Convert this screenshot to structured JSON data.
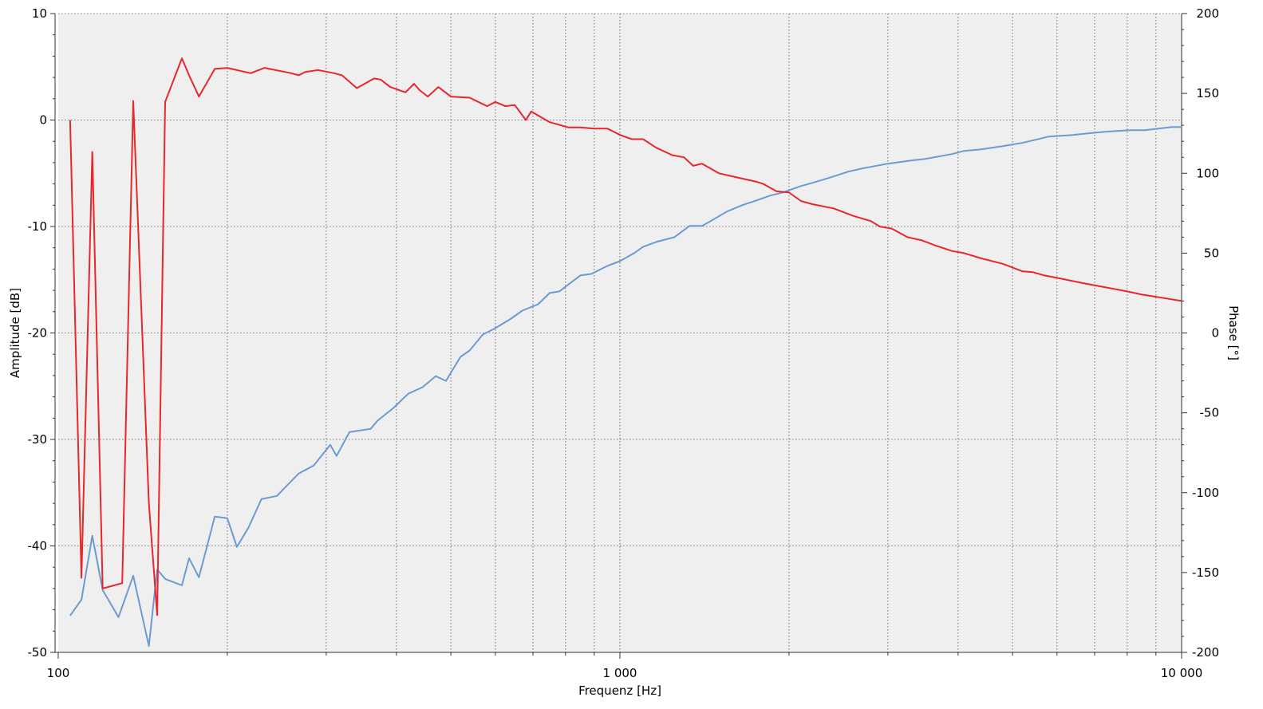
{
  "chart_data": {
    "type": "line",
    "xlabel": "Frequenz [Hz]",
    "ylabel": "Amplitude [dB]",
    "y2label": "Phase [°]",
    "xscale": "log",
    "xlim": [
      100,
      10000
    ],
    "ylim": [
      -50,
      10
    ],
    "y2lim": [
      -200,
      200
    ],
    "grid": true,
    "x_ticks": [
      {
        "value": 100,
        "label": "100"
      },
      {
        "value": 1000,
        "label": "1 000"
      },
      {
        "value": 10000,
        "label": "10 000"
      }
    ],
    "y_ticks": [
      {
        "value": 10,
        "label": "10"
      },
      {
        "value": 0,
        "label": "0"
      },
      {
        "value": -10,
        "label": "-10"
      },
      {
        "value": -20,
        "label": "-20"
      },
      {
        "value": -30,
        "label": "-30"
      },
      {
        "value": -40,
        "label": "-40"
      },
      {
        "value": -50,
        "label": "-50"
      }
    ],
    "y2_ticks": [
      {
        "value": 200,
        "label": "200"
      },
      {
        "value": 150,
        "label": "150"
      },
      {
        "value": 100,
        "label": "100"
      },
      {
        "value": 50,
        "label": "50"
      },
      {
        "value": 0,
        "label": "0"
      },
      {
        "value": -50,
        "label": "-50"
      },
      {
        "value": -100,
        "label": "-100"
      },
      {
        "value": -150,
        "label": "-150"
      },
      {
        "value": -200,
        "label": "-200"
      }
    ],
    "colors": {
      "amplitude": "#e8262b",
      "phase": "#6b9bd2",
      "plot_bg": "#efefef",
      "grid": "#555555"
    },
    "series": [
      {
        "axis": "left",
        "color": "#e8262b",
        "points": [
          [
            105,
            0
          ],
          [
            110,
            -43
          ],
          [
            115,
            -3
          ],
          [
            120,
            -44
          ],
          [
            130,
            -43.5
          ],
          [
            136,
            1.8
          ],
          [
            145,
            -36
          ],
          [
            150,
            -46.5
          ],
          [
            155,
            1.7
          ],
          [
            166,
            5.8
          ],
          [
            171,
            4.2
          ],
          [
            178,
            2.2
          ],
          [
            190,
            4.8
          ],
          [
            200,
            4.9
          ],
          [
            220,
            4.4
          ],
          [
            233,
            4.9
          ],
          [
            260,
            4.4
          ],
          [
            268,
            4.2
          ],
          [
            275,
            4.5
          ],
          [
            290,
            4.7
          ],
          [
            310,
            4.4
          ],
          [
            320,
            4.2
          ],
          [
            340,
            3.0
          ],
          [
            365,
            3.9
          ],
          [
            375,
            3.8
          ],
          [
            390,
            3.1
          ],
          [
            415,
            2.6
          ],
          [
            430,
            3.4
          ],
          [
            440,
            2.8
          ],
          [
            455,
            2.2
          ],
          [
            475,
            3.1
          ],
          [
            500,
            2.2
          ],
          [
            540,
            2.1
          ],
          [
            580,
            1.3
          ],
          [
            600,
            1.7
          ],
          [
            625,
            1.3
          ],
          [
            650,
            1.4
          ],
          [
            680,
            0
          ],
          [
            695,
            0.8
          ],
          [
            750,
            -0.2
          ],
          [
            810,
            -0.7
          ],
          [
            850,
            -0.7
          ],
          [
            900,
            -0.8
          ],
          [
            950,
            -0.8
          ],
          [
            1000,
            -1.4
          ],
          [
            1050,
            -1.8
          ],
          [
            1100,
            -1.8
          ],
          [
            1160,
            -2.6
          ],
          [
            1240,
            -3.3
          ],
          [
            1300,
            -3.5
          ],
          [
            1350,
            -4.3
          ],
          [
            1400,
            -4.1
          ],
          [
            1500,
            -5.0
          ],
          [
            1620,
            -5.4
          ],
          [
            1750,
            -5.8
          ],
          [
            1800,
            -6.0
          ],
          [
            1900,
            -6.7
          ],
          [
            2000,
            -6.8
          ],
          [
            2100,
            -7.6
          ],
          [
            2200,
            -7.9
          ],
          [
            2400,
            -8.3
          ],
          [
            2600,
            -9.0
          ],
          [
            2800,
            -9.5
          ],
          [
            2900,
            -10.0
          ],
          [
            3050,
            -10.2
          ],
          [
            3250,
            -11.0
          ],
          [
            3450,
            -11.3
          ],
          [
            3650,
            -11.8
          ],
          [
            3900,
            -12.3
          ],
          [
            4100,
            -12.5
          ],
          [
            4400,
            -13.0
          ],
          [
            4800,
            -13.5
          ],
          [
            5200,
            -14.2
          ],
          [
            5450,
            -14.3
          ],
          [
            5700,
            -14.6
          ],
          [
            6100,
            -14.9
          ],
          [
            6500,
            -15.2
          ],
          [
            6800,
            -15.4
          ],
          [
            7300,
            -15.7
          ],
          [
            8000,
            -16.1
          ],
          [
            8500,
            -16.4
          ],
          [
            9000,
            -16.6
          ],
          [
            9500,
            -16.8
          ],
          [
            10000,
            -17.0
          ]
        ]
      },
      {
        "axis": "right",
        "color": "#6b9bd2",
        "points": [
          [
            105,
            -177
          ],
          [
            110,
            -167
          ],
          [
            115,
            -127
          ],
          [
            120,
            -161
          ],
          [
            128,
            -178
          ],
          [
            136,
            -152
          ],
          [
            145,
            -196
          ],
          [
            150,
            -148
          ],
          [
            155,
            -154
          ],
          [
            166,
            -158
          ],
          [
            171,
            -141
          ],
          [
            178,
            -153
          ],
          [
            190,
            -115
          ],
          [
            200,
            -116
          ],
          [
            208,
            -134
          ],
          [
            218,
            -122
          ],
          [
            230,
            -104
          ],
          [
            245,
            -102
          ],
          [
            268,
            -88
          ],
          [
            285,
            -83
          ],
          [
            305,
            -70
          ],
          [
            313,
            -77
          ],
          [
            330,
            -62
          ],
          [
            360,
            -60
          ],
          [
            370,
            -55
          ],
          [
            395,
            -47
          ],
          [
            420,
            -38
          ],
          [
            445,
            -34
          ],
          [
            470,
            -27
          ],
          [
            490,
            -30
          ],
          [
            520,
            -15
          ],
          [
            540,
            -11
          ],
          [
            570,
            -1
          ],
          [
            600,
            3
          ],
          [
            640,
            9
          ],
          [
            670,
            14
          ],
          [
            715,
            18
          ],
          [
            750,
            25
          ],
          [
            780,
            26
          ],
          [
            850,
            36
          ],
          [
            890,
            37
          ],
          [
            950,
            42
          ],
          [
            1000,
            45
          ],
          [
            1060,
            50
          ],
          [
            1100,
            54
          ],
          [
            1160,
            57
          ],
          [
            1250,
            60
          ],
          [
            1330,
            67
          ],
          [
            1400,
            67
          ],
          [
            1450,
            70
          ],
          [
            1550,
            76
          ],
          [
            1650,
            80
          ],
          [
            1750,
            83
          ],
          [
            1850,
            86
          ],
          [
            1950,
            88
          ],
          [
            2100,
            92
          ],
          [
            2200,
            94
          ],
          [
            2350,
            97
          ],
          [
            2550,
            101
          ],
          [
            2700,
            103
          ],
          [
            3000,
            106
          ],
          [
            3300,
            108
          ],
          [
            3500,
            109
          ],
          [
            3900,
            112
          ],
          [
            4100,
            114
          ],
          [
            4400,
            115
          ],
          [
            4800,
            117
          ],
          [
            5200,
            119
          ],
          [
            5500,
            121
          ],
          [
            5800,
            123
          ],
          [
            6400,
            124
          ],
          [
            6800,
            125
          ],
          [
            7300,
            126
          ],
          [
            8100,
            127
          ],
          [
            8600,
            127
          ],
          [
            9100,
            128
          ],
          [
            9600,
            129
          ],
          [
            10000,
            129
          ]
        ]
      }
    ]
  }
}
